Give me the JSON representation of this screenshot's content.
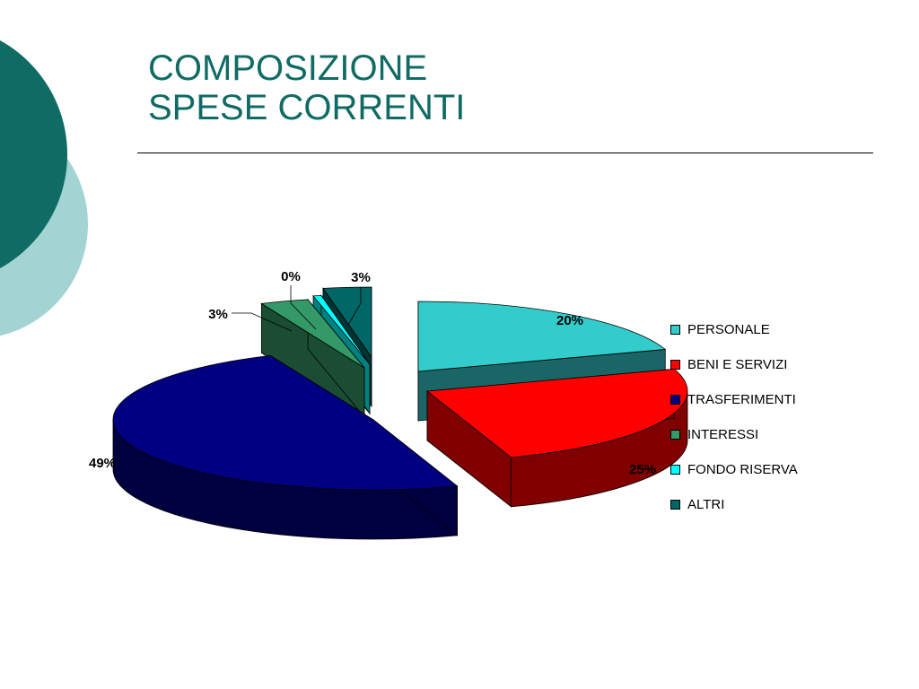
{
  "slide": {
    "title_line1": "COMPOSIZIONE",
    "title_line2": "SPESE CORRENTI",
    "accent_color": "#0f6b64",
    "accent_light_color": "#a4d3d3"
  },
  "chart_data": {
    "type": "pie",
    "title": "",
    "legend_position": "right",
    "slices": [
      {
        "label": "PERSONALE",
        "value": 20,
        "value_label": "20%",
        "color": "#33cccc",
        "side_color": "#1a6666"
      },
      {
        "label": "BENI E SERVIZI",
        "value": 25,
        "value_label": "25%",
        "color": "#ff0000",
        "side_color": "#800000"
      },
      {
        "label": "TRASFERIMENTI",
        "value": 49,
        "value_label": "49%",
        "color": "#000080",
        "side_color": "#000040"
      },
      {
        "label": "INTERESSI",
        "value": 3,
        "value_label": "3%",
        "color": "#339966",
        "side_color": "#1a4d33"
      },
      {
        "label": "FONDO RISERVA",
        "value": 0.5,
        "value_label": "0%",
        "color": "#00ffff",
        "side_color": "#008080"
      },
      {
        "label": "ALTRI",
        "value": 3,
        "value_label": "3%",
        "color": "#006666",
        "side_color": "#003333"
      }
    ]
  }
}
